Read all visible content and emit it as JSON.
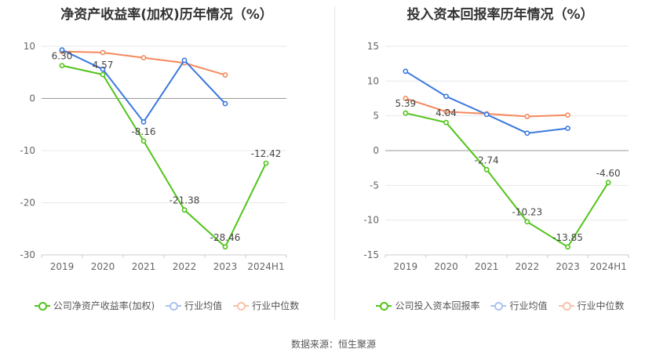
{
  "source": "数据来源：恒生聚源",
  "chart_data": [
    {
      "type": "line",
      "title": "净资产收益率(加权)历年情况（%）",
      "categories": [
        "2019",
        "2020",
        "2021",
        "2022",
        "2023",
        "2024H1"
      ],
      "yticks": [
        10,
        0,
        -10,
        -20,
        -30
      ],
      "ylim": [
        -30,
        10
      ],
      "grid": true,
      "legend_position": "bottom",
      "series": [
        {
          "name": "公司净资产收益率(加权)",
          "color": "#52c41a",
          "values": [
            6.3,
            4.57,
            -8.16,
            -21.38,
            -28.46,
            -12.42
          ],
          "labels": [
            "6.30",
            "4.57",
            "-8.16",
            "-21.38",
            "-28.46",
            "-12.42"
          ]
        },
        {
          "name": "行业均值",
          "color": "#3a78e0",
          "values": [
            9.3,
            5.6,
            -4.5,
            7.3,
            -1.0,
            null
          ]
        },
        {
          "name": "行业中位数",
          "color": "#f5895c",
          "values": [
            9.0,
            8.8,
            7.8,
            6.8,
            4.5,
            null
          ]
        }
      ]
    },
    {
      "type": "line",
      "title": "投入资本回报率历年情况（%）",
      "categories": [
        "2019",
        "2020",
        "2021",
        "2022",
        "2023",
        "2024H1"
      ],
      "yticks": [
        15,
        10,
        5,
        0,
        -5,
        -10,
        -15
      ],
      "ylim": [
        -15,
        15
      ],
      "grid": true,
      "legend_position": "bottom",
      "series": [
        {
          "name": "公司投入资本回报率",
          "color": "#52c41a",
          "values": [
            5.39,
            4.04,
            -2.74,
            -10.23,
            -13.85,
            -4.6
          ],
          "labels": [
            "5.39",
            "4.04",
            "-2.74",
            "-10.23",
            "-13.85",
            "-4.60"
          ]
        },
        {
          "name": "行业均值",
          "color": "#3a78e0",
          "values": [
            11.4,
            7.8,
            5.2,
            2.5,
            3.2,
            null
          ]
        },
        {
          "name": "行业中位数",
          "color": "#f5895c",
          "values": [
            7.5,
            5.6,
            5.3,
            4.9,
            5.1,
            null
          ]
        }
      ]
    }
  ]
}
